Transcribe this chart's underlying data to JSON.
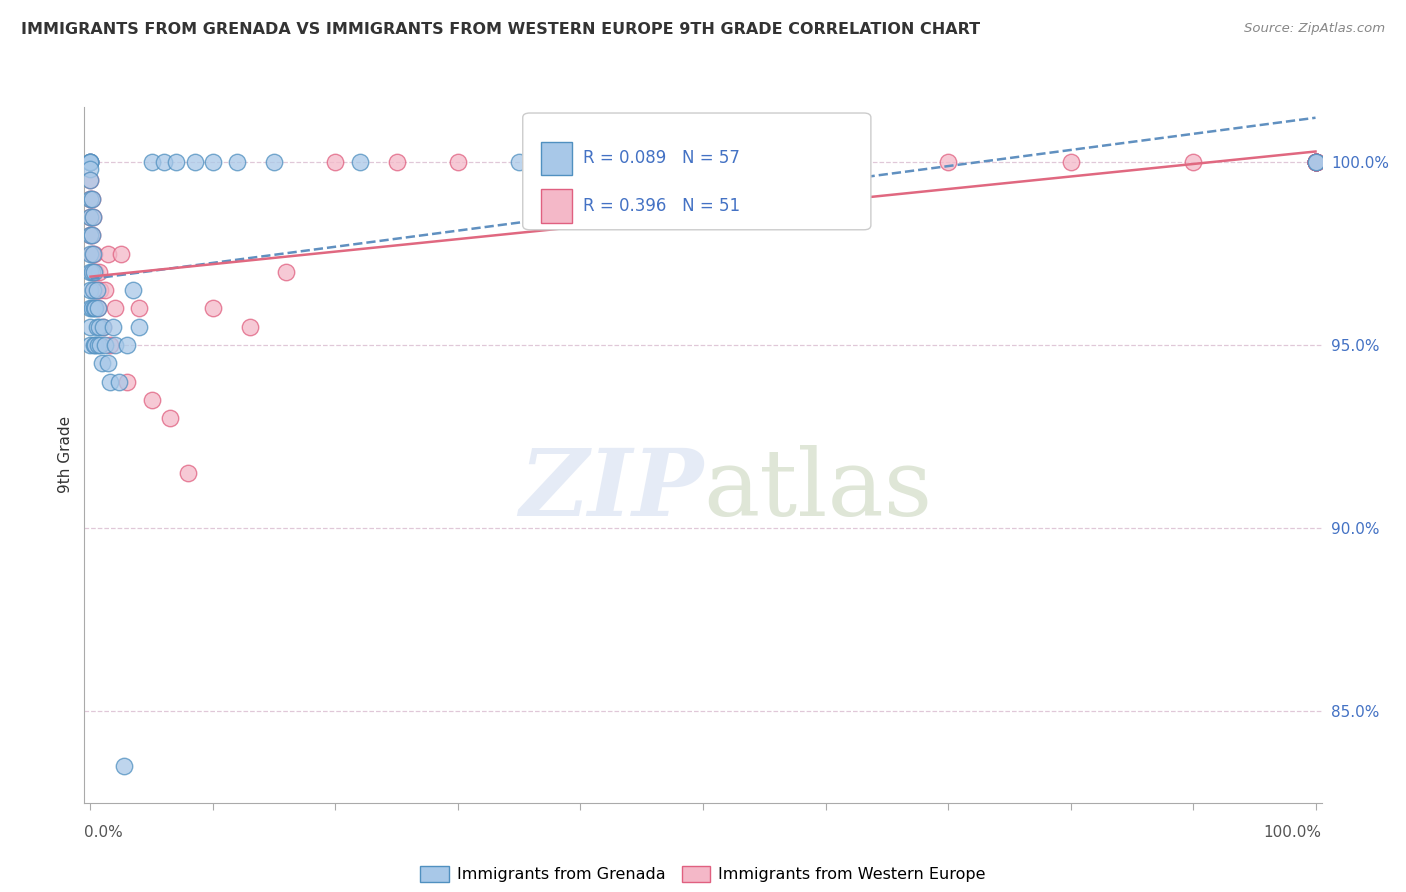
{
  "title": "IMMIGRANTS FROM GRENADA VS IMMIGRANTS FROM WESTERN EUROPE 9TH GRADE CORRELATION CHART",
  "source": "Source: ZipAtlas.com",
  "ylabel": "9th Grade",
  "legend_label1": "Immigrants from Grenada",
  "legend_label2": "Immigrants from Western Europe",
  "R1": 0.089,
  "N1": 57,
  "R2": 0.396,
  "N2": 51,
  "color1": "#a8c8e8",
  "color2": "#f4b8c8",
  "edge1": "#5090c0",
  "edge2": "#e06080",
  "line1_color": "#6090c0",
  "line2_color": "#e06880",
  "background_color": "#ffffff",
  "grid_color": "#e0c8d8",
  "watermark_color": "#ccd8ee",
  "ylim": [
    82.5,
    101.5
  ],
  "xlim": [
    -0.005,
    1.005
  ],
  "blue_x": [
    0.0,
    0.0,
    0.0,
    0.0,
    0.0,
    0.0,
    0.0,
    0.0,
    0.0,
    0.0,
    0.0,
    0.0,
    0.0,
    0.0,
    0.0,
    0.001,
    0.001,
    0.001,
    0.001,
    0.002,
    0.002,
    0.002,
    0.003,
    0.003,
    0.003,
    0.004,
    0.004,
    0.005,
    0.005,
    0.006,
    0.006,
    0.007,
    0.008,
    0.009,
    0.01,
    0.012,
    0.014,
    0.016,
    0.018,
    0.02,
    0.023,
    0.027,
    0.03,
    0.035,
    0.04,
    0.05,
    0.06,
    0.07,
    0.085,
    0.1,
    0.12,
    0.15,
    0.22,
    0.35,
    0.55,
    1.0,
    1.0
  ],
  "blue_y": [
    100.0,
    100.0,
    100.0,
    100.0,
    99.8,
    99.5,
    99.0,
    98.5,
    98.0,
    97.5,
    97.0,
    96.5,
    96.0,
    95.5,
    95.0,
    99.0,
    98.0,
    97.0,
    96.0,
    98.5,
    97.5,
    96.5,
    97.0,
    96.0,
    95.0,
    96.0,
    95.0,
    96.5,
    95.5,
    96.0,
    95.0,
    95.5,
    95.0,
    94.5,
    95.5,
    95.0,
    94.5,
    94.0,
    95.5,
    95.0,
    94.0,
    83.5,
    95.0,
    96.5,
    95.5,
    100.0,
    100.0,
    100.0,
    100.0,
    100.0,
    100.0,
    100.0,
    100.0,
    100.0,
    100.0,
    100.0,
    100.0
  ],
  "pink_x": [
    0.0,
    0.0,
    0.0,
    0.0,
    0.0,
    0.001,
    0.001,
    0.001,
    0.002,
    0.002,
    0.003,
    0.003,
    0.004,
    0.005,
    0.006,
    0.007,
    0.008,
    0.01,
    0.012,
    0.014,
    0.016,
    0.02,
    0.025,
    0.03,
    0.04,
    0.05,
    0.065,
    0.08,
    0.1,
    0.13,
    0.16,
    0.2,
    0.25,
    0.3,
    0.4,
    0.5,
    0.6,
    0.7,
    0.8,
    0.9,
    1.0,
    1.0,
    1.0,
    1.0,
    1.0,
    1.0,
    1.0,
    1.0,
    1.0,
    1.0,
    1.0
  ],
  "pink_y": [
    100.0,
    99.5,
    99.0,
    98.5,
    98.0,
    99.0,
    98.0,
    97.5,
    98.5,
    97.0,
    97.5,
    96.5,
    97.0,
    96.5,
    96.0,
    97.0,
    96.5,
    95.5,
    96.5,
    97.5,
    95.0,
    96.0,
    97.5,
    94.0,
    96.0,
    93.5,
    93.0,
    91.5,
    96.0,
    95.5,
    97.0,
    100.0,
    100.0,
    100.0,
    100.0,
    100.0,
    100.0,
    100.0,
    100.0,
    100.0,
    100.0,
    100.0,
    100.0,
    100.0,
    100.0,
    100.0,
    100.0,
    100.0,
    100.0,
    100.0,
    100.0
  ]
}
